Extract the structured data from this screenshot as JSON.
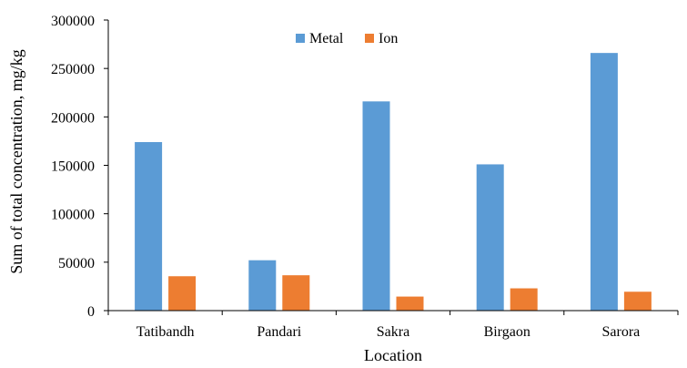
{
  "chart_data": {
    "type": "bar",
    "categories": [
      "Tatibandh",
      "Pandari",
      "Sakra",
      "Birgaon",
      "Sarora"
    ],
    "series": [
      {
        "name": "Metal",
        "color": "#5B9BD5",
        "values": [
          174000,
          52000,
          216000,
          151000,
          266000
        ]
      },
      {
        "name": "Ion",
        "color": "#ED7D31",
        "values": [
          35500,
          36500,
          14500,
          23000,
          19500
        ]
      }
    ],
    "xlabel": "Location",
    "ylabel": "Sum of total concentration, mg/kg",
    "ylim": [
      0,
      300000
    ],
    "yticks": [
      0,
      50000,
      100000,
      150000,
      200000,
      250000,
      300000
    ],
    "ytick_labels": [
      "0",
      "50000",
      "100000",
      "150000",
      "200000",
      "250000",
      "300000"
    ],
    "grid": false,
    "legend_position": "top-center"
  }
}
